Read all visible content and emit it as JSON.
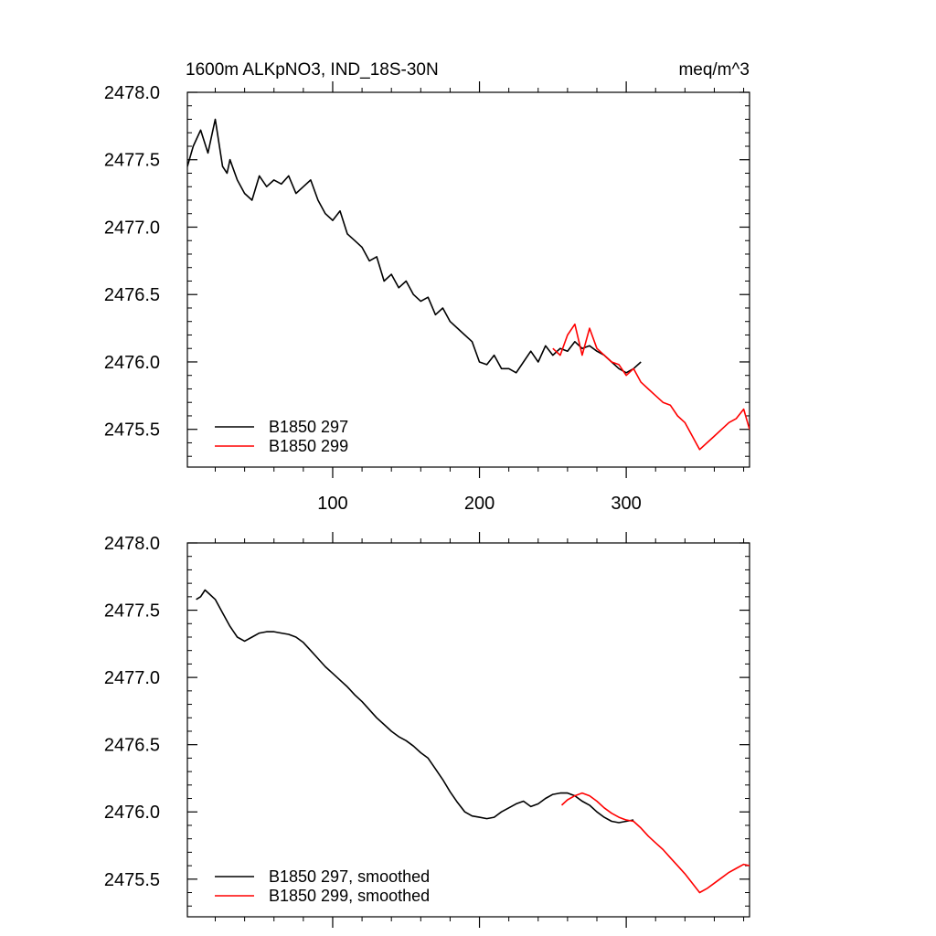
{
  "figure": {
    "title_left": "1600m ALKpNO3, IND_18S-30N",
    "title_right": "meq/m^3"
  },
  "colors": {
    "run297": "#000000",
    "run299": "#ff0000"
  },
  "chart_data": [
    {
      "type": "line",
      "panel": "raw",
      "title": "1600m ALKpNO3, IND_18S-30N",
      "units": "meq/m^3",
      "xlim": [
        1,
        384
      ],
      "ylim": [
        2475.22,
        2478.0
      ],
      "x_ticks": [
        100,
        200,
        300
      ],
      "x_tick_labels": [
        "100",
        "200",
        "300"
      ],
      "y_ticks": [
        2478.0,
        2477.5,
        2477.0,
        2476.5,
        2476.0,
        2475.5
      ],
      "y_tick_labels": [
        "2478.0",
        "2477.5",
        "2477.0",
        "2476.5",
        "2476.0",
        "2475.5"
      ],
      "legend_position": "bottom-left",
      "series": [
        {
          "name": "B1850 297",
          "color": "#000000",
          "x": [
            1,
            5,
            10,
            15,
            18,
            20,
            25,
            28,
            30,
            35,
            40,
            45,
            50,
            55,
            60,
            65,
            70,
            75,
            80,
            85,
            90,
            95,
            100,
            105,
            110,
            115,
            120,
            125,
            130,
            135,
            140,
            145,
            150,
            155,
            160,
            165,
            170,
            175,
            180,
            185,
            190,
            195,
            200,
            205,
            210,
            215,
            220,
            225,
            230,
            235,
            240,
            245,
            250,
            255,
            260,
            265,
            270,
            275,
            280,
            285,
            290,
            295,
            300,
            305,
            310
          ],
          "y": [
            2477.45,
            2477.6,
            2477.72,
            2477.55,
            2477.7,
            2477.8,
            2477.45,
            2477.4,
            2477.5,
            2477.35,
            2477.25,
            2477.2,
            2477.38,
            2477.3,
            2477.35,
            2477.32,
            2477.38,
            2477.25,
            2477.3,
            2477.35,
            2477.2,
            2477.1,
            2477.05,
            2477.12,
            2476.95,
            2476.9,
            2476.85,
            2476.75,
            2476.78,
            2476.6,
            2476.65,
            2476.55,
            2476.6,
            2476.5,
            2476.45,
            2476.48,
            2476.35,
            2476.4,
            2476.3,
            2476.25,
            2476.2,
            2476.15,
            2476.0,
            2475.98,
            2476.05,
            2475.95,
            2475.95,
            2475.92,
            2476.0,
            2476.08,
            2476.0,
            2476.12,
            2476.05,
            2476.1,
            2476.08,
            2476.15,
            2476.1,
            2476.12,
            2476.08,
            2476.05,
            2476.0,
            2475.95,
            2475.92,
            2475.95,
            2476.0
          ]
        },
        {
          "name": "B1850 299",
          "color": "#ff0000",
          "x": [
            250,
            255,
            260,
            265,
            270,
            275,
            280,
            285,
            290,
            295,
            300,
            305,
            310,
            315,
            320,
            325,
            330,
            335,
            340,
            345,
            350,
            355,
            360,
            365,
            370,
            375,
            380,
            384
          ],
          "y": [
            2476.1,
            2476.05,
            2476.2,
            2476.28,
            2476.05,
            2476.25,
            2476.1,
            2476.05,
            2476.0,
            2475.98,
            2475.9,
            2475.95,
            2475.85,
            2475.8,
            2475.75,
            2475.7,
            2475.68,
            2475.6,
            2475.55,
            2475.45,
            2475.35,
            2475.4,
            2475.45,
            2475.5,
            2475.55,
            2475.58,
            2475.65,
            2475.5
          ]
        }
      ]
    },
    {
      "type": "line",
      "panel": "smoothed",
      "xlim": [
        1,
        384
      ],
      "ylim": [
        2475.22,
        2478.0
      ],
      "x_ticks": [
        100,
        200,
        300
      ],
      "y_ticks": [
        2478.0,
        2477.5,
        2477.0,
        2476.5,
        2476.0,
        2475.5
      ],
      "y_tick_labels": [
        "2478.0",
        "2477.5",
        "2477.0",
        "2476.5",
        "2476.0",
        "2475.5"
      ],
      "legend_position": "bottom-left",
      "series": [
        {
          "name": "B1850 297, smoothed",
          "color": "#000000",
          "x": [
            7,
            10,
            13,
            16,
            20,
            25,
            30,
            35,
            40,
            45,
            50,
            55,
            60,
            65,
            70,
            75,
            80,
            85,
            90,
            95,
            100,
            105,
            110,
            115,
            120,
            125,
            130,
            135,
            140,
            145,
            150,
            155,
            160,
            165,
            170,
            175,
            180,
            185,
            190,
            195,
            200,
            205,
            210,
            215,
            220,
            225,
            230,
            235,
            240,
            245,
            250,
            255,
            260,
            265,
            270,
            275,
            280,
            285,
            290,
            295,
            300,
            305
          ],
          "y": [
            2477.58,
            2477.6,
            2477.65,
            2477.62,
            2477.58,
            2477.48,
            2477.38,
            2477.3,
            2477.27,
            2477.3,
            2477.33,
            2477.34,
            2477.34,
            2477.33,
            2477.32,
            2477.3,
            2477.26,
            2477.2,
            2477.14,
            2477.08,
            2477.03,
            2476.98,
            2476.93,
            2476.87,
            2476.82,
            2476.76,
            2476.7,
            2476.65,
            2476.6,
            2476.56,
            2476.53,
            2476.49,
            2476.44,
            2476.4,
            2476.32,
            2476.24,
            2476.15,
            2476.07,
            2476.0,
            2475.97,
            2475.96,
            2475.95,
            2475.96,
            2476.0,
            2476.03,
            2476.06,
            2476.08,
            2476.04,
            2476.06,
            2476.1,
            2476.13,
            2476.14,
            2476.14,
            2476.12,
            2476.08,
            2476.05,
            2476.0,
            2475.96,
            2475.93,
            2475.92,
            2475.93,
            2475.94
          ]
        },
        {
          "name": "B1850 299, smoothed",
          "color": "#ff0000",
          "x": [
            256,
            260,
            265,
            270,
            275,
            280,
            285,
            290,
            295,
            300,
            305,
            310,
            315,
            320,
            325,
            330,
            335,
            340,
            345,
            350,
            355,
            360,
            365,
            370,
            375,
            380,
            384
          ],
          "y": [
            2476.05,
            2476.09,
            2476.12,
            2476.14,
            2476.12,
            2476.08,
            2476.03,
            2475.99,
            2475.96,
            2475.94,
            2475.93,
            2475.88,
            2475.82,
            2475.77,
            2475.72,
            2475.66,
            2475.6,
            2475.54,
            2475.47,
            2475.4,
            2475.43,
            2475.47,
            2475.51,
            2475.55,
            2475.58,
            2475.61,
            2475.6
          ]
        }
      ]
    }
  ]
}
